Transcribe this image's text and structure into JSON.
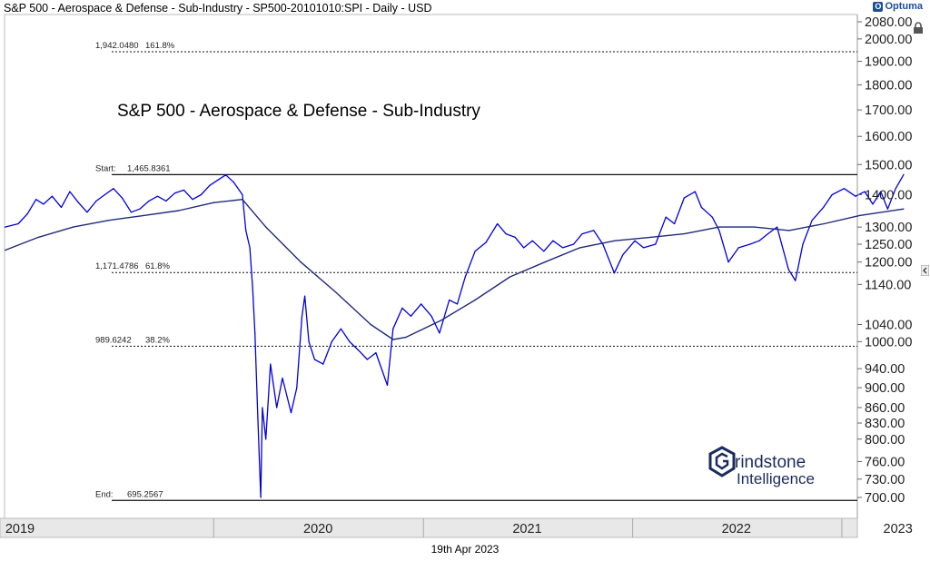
{
  "header": {
    "title": "S&P 500 - Aerospace & Defense - Sub-Industry - SP500-20101010:SPI - Daily - USD",
    "brand": "Optuma"
  },
  "footer": {
    "date": "19th Apr 2023"
  },
  "watermark": {
    "line1": "rindstone",
    "line2": "Intelligence"
  },
  "chart_data": {
    "type": "line",
    "title": "S&P 500 - Aerospace & Defense - Sub-Industry",
    "y_scale": "log",
    "ylim": [
      690,
      2090
    ],
    "y_ticks": [
      "700.00",
      "730.00",
      "760.00",
      "800.00",
      "830.00",
      "860.00",
      "900.00",
      "940.00",
      "1000.00",
      "1040.00",
      "1140.00",
      "1200.00",
      "1250.00",
      "1300.00",
      "1400.00",
      "1500.00",
      "1600.00",
      "1700.00",
      "1800.00",
      "1900.00",
      "2000.00",
      "2080.00"
    ],
    "x_labels": [
      "2019",
      "2020",
      "2021",
      "2022",
      "2023"
    ],
    "grid": false,
    "levels": [
      {
        "value": 1942.048,
        "label": "1,942.0480",
        "pct": "161.8%",
        "style": "dashed"
      },
      {
        "value": 1465.8361,
        "label": "Start:",
        "num": "1,465.8361",
        "style": "solid"
      },
      {
        "value": 1171.4786,
        "label": "1,171.4786",
        "pct": "61.8%",
        "style": "dashed"
      },
      {
        "value": 989.6242,
        "label": "989.6242",
        "pct": "38.2%",
        "style": "dashed"
      },
      {
        "value": 695.2567,
        "label": "End:",
        "num": "695.2567",
        "style": "solid"
      }
    ],
    "series": [
      {
        "color": "#0000dd",
        "points": [
          [
            "2019-01-02",
            1300
          ],
          [
            "2019-01-25",
            1310
          ],
          [
            "2019-02-10",
            1340
          ],
          [
            "2019-02-25",
            1385
          ],
          [
            "2019-03-10",
            1370
          ],
          [
            "2019-03-25",
            1395
          ],
          [
            "2019-04-10",
            1360
          ],
          [
            "2019-04-25",
            1410
          ],
          [
            "2019-05-10",
            1375
          ],
          [
            "2019-05-25",
            1345
          ],
          [
            "2019-06-10",
            1380
          ],
          [
            "2019-06-25",
            1400
          ],
          [
            "2019-07-10",
            1420
          ],
          [
            "2019-07-25",
            1390
          ],
          [
            "2019-08-10",
            1345
          ],
          [
            "2019-08-25",
            1355
          ],
          [
            "2019-09-10",
            1380
          ],
          [
            "2019-09-25",
            1395
          ],
          [
            "2019-10-10",
            1380
          ],
          [
            "2019-10-25",
            1405
          ],
          [
            "2019-11-10",
            1415
          ],
          [
            "2019-11-25",
            1385
          ],
          [
            "2019-12-10",
            1400
          ],
          [
            "2019-12-25",
            1430
          ],
          [
            "2020-01-10",
            1450
          ],
          [
            "2020-01-22",
            1465
          ],
          [
            "2020-02-05",
            1440
          ],
          [
            "2020-02-20",
            1400
          ],
          [
            "2020-02-26",
            1290
          ],
          [
            "2020-03-04",
            1240
          ],
          [
            "2020-03-09",
            1130
          ],
          [
            "2020-03-13",
            1020
          ],
          [
            "2020-03-18",
            840
          ],
          [
            "2020-03-23",
            700
          ],
          [
            "2020-03-26",
            860
          ],
          [
            "2020-04-01",
            800
          ],
          [
            "2020-04-09",
            950
          ],
          [
            "2020-04-20",
            860
          ],
          [
            "2020-04-30",
            920
          ],
          [
            "2020-05-15",
            850
          ],
          [
            "2020-05-25",
            900
          ],
          [
            "2020-06-03",
            1060
          ],
          [
            "2020-06-08",
            1110
          ],
          [
            "2020-06-15",
            1000
          ],
          [
            "2020-06-25",
            960
          ],
          [
            "2020-07-10",
            950
          ],
          [
            "2020-07-25",
            1000
          ],
          [
            "2020-08-10",
            1030
          ],
          [
            "2020-08-25",
            1000
          ],
          [
            "2020-09-10",
            980
          ],
          [
            "2020-09-25",
            960
          ],
          [
            "2020-10-10",
            975
          ],
          [
            "2020-10-30",
            905
          ],
          [
            "2020-11-09",
            1030
          ],
          [
            "2020-11-25",
            1080
          ],
          [
            "2020-12-10",
            1060
          ],
          [
            "2020-12-28",
            1090
          ],
          [
            "2021-01-15",
            1060
          ],
          [
            "2021-01-29",
            1020
          ],
          [
            "2021-02-15",
            1100
          ],
          [
            "2021-03-01",
            1090
          ],
          [
            "2021-03-15",
            1160
          ],
          [
            "2021-04-01",
            1230
          ],
          [
            "2021-04-20",
            1255
          ],
          [
            "2021-05-10",
            1310
          ],
          [
            "2021-05-25",
            1280
          ],
          [
            "2021-06-10",
            1270
          ],
          [
            "2021-06-25",
            1240
          ],
          [
            "2021-07-10",
            1260
          ],
          [
            "2021-07-30",
            1230
          ],
          [
            "2021-08-15",
            1260
          ],
          [
            "2021-09-01",
            1240
          ],
          [
            "2021-09-20",
            1250
          ],
          [
            "2021-10-05",
            1280
          ],
          [
            "2021-10-25",
            1290
          ],
          [
            "2021-11-10",
            1250
          ],
          [
            "2021-11-30",
            1170
          ],
          [
            "2021-12-15",
            1220
          ],
          [
            "2022-01-05",
            1260
          ],
          [
            "2022-01-20",
            1240
          ],
          [
            "2022-02-10",
            1250
          ],
          [
            "2022-02-28",
            1330
          ],
          [
            "2022-03-15",
            1310
          ],
          [
            "2022-04-01",
            1390
          ],
          [
            "2022-04-20",
            1410
          ],
          [
            "2022-05-01",
            1360
          ],
          [
            "2022-05-20",
            1330
          ],
          [
            "2022-06-01",
            1290
          ],
          [
            "2022-06-17",
            1200
          ],
          [
            "2022-07-05",
            1240
          ],
          [
            "2022-07-25",
            1250
          ],
          [
            "2022-08-10",
            1260
          ],
          [
            "2022-08-25",
            1280
          ],
          [
            "2022-09-10",
            1300
          ],
          [
            "2022-09-30",
            1180
          ],
          [
            "2022-10-12",
            1150
          ],
          [
            "2022-10-25",
            1250
          ],
          [
            "2022-11-10",
            1320
          ],
          [
            "2022-11-30",
            1360
          ],
          [
            "2022-12-15",
            1400
          ],
          [
            "2023-01-05",
            1420
          ],
          [
            "2023-01-25",
            1395
          ],
          [
            "2023-02-10",
            1410
          ],
          [
            "2023-02-24",
            1370
          ],
          [
            "2023-03-10",
            1410
          ],
          [
            "2023-03-22",
            1355
          ],
          [
            "2023-04-05",
            1420
          ],
          [
            "2023-04-19",
            1466
          ]
        ]
      },
      {
        "color": "#1f2a7a",
        "points": [
          [
            "2019-01-02",
            1233
          ],
          [
            "2019-03-01",
            1270
          ],
          [
            "2019-05-01",
            1300
          ],
          [
            "2019-07-01",
            1320
          ],
          [
            "2019-09-01",
            1335
          ],
          [
            "2019-11-01",
            1350
          ],
          [
            "2020-01-01",
            1375
          ],
          [
            "2020-02-20",
            1385
          ],
          [
            "2020-04-01",
            1300
          ],
          [
            "2020-06-01",
            1200
          ],
          [
            "2020-08-01",
            1120
          ],
          [
            "2020-10-01",
            1040
          ],
          [
            "2020-11-09",
            1005
          ],
          [
            "2020-12-01",
            1010
          ],
          [
            "2021-02-01",
            1050
          ],
          [
            "2021-04-01",
            1100
          ],
          [
            "2021-06-01",
            1160
          ],
          [
            "2021-08-01",
            1200
          ],
          [
            "2021-10-01",
            1240
          ],
          [
            "2021-12-01",
            1260
          ],
          [
            "2022-02-01",
            1270
          ],
          [
            "2022-04-01",
            1280
          ],
          [
            "2022-06-01",
            1300
          ],
          [
            "2022-08-01",
            1300
          ],
          [
            "2022-10-01",
            1290
          ],
          [
            "2022-12-01",
            1310
          ],
          [
            "2023-02-01",
            1335
          ],
          [
            "2023-04-19",
            1355
          ]
        ]
      }
    ]
  }
}
